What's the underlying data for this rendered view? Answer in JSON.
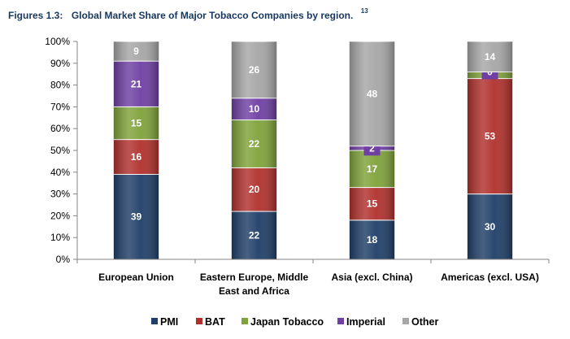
{
  "chart_data": {
    "type": "bar",
    "stacked": true,
    "title": {
      "prefix": "Figures 1.3:",
      "text": "Global Market Share of Major Tobacco Companies by region.",
      "footnote": "13"
    },
    "xlabel": "",
    "ylabel": "",
    "ylim": [
      0,
      100
    ],
    "yticks": [
      "0%",
      "10%",
      "20%",
      "30%",
      "40%",
      "50%",
      "60%",
      "70%",
      "80%",
      "90%",
      "100%"
    ],
    "grid": false,
    "legend_position": "bottom",
    "categories": [
      [
        "European Union"
      ],
      [
        "Eastern Europe, Middle",
        "East and Africa"
      ],
      [
        "Asia (excl. China)"
      ],
      [
        "Americas (excl. USA)"
      ]
    ],
    "series": [
      {
        "name": "PMI",
        "color": "#1f3e68",
        "values": [
          39,
          22,
          18,
          30
        ]
      },
      {
        "name": "BAT",
        "color": "#b0302c",
        "values": [
          16,
          20,
          15,
          53
        ]
      },
      {
        "name": "Japan Tobacco",
        "color": "#7fa23a",
        "values": [
          15,
          22,
          17,
          3
        ]
      },
      {
        "name": "Imperial",
        "color": "#6f3fa3",
        "values": [
          21,
          10,
          2,
          0
        ]
      },
      {
        "name": "Other",
        "color": "#a6a6a6",
        "values": [
          9,
          26,
          48,
          14
        ]
      }
    ],
    "data_labels": [
      [
        "39",
        "22",
        "18",
        "30"
      ],
      [
        "16",
        "20",
        "15",
        "53"
      ],
      [
        "15",
        "22",
        "17",
        ""
      ],
      [
        "21",
        "10",
        "2",
        "0"
      ],
      [
        "9",
        "26",
        "48",
        "14"
      ]
    ]
  }
}
